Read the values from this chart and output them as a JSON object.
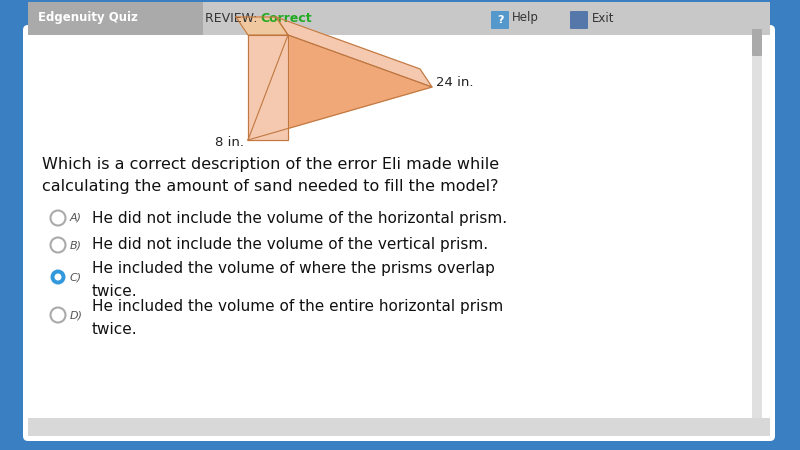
{
  "bg_outer": "#3a7fc1",
  "header_bg": "#c8c8c8",
  "header_text_quiz": "Edgenuity Quiz",
  "header_text_review": "REVIEW: ",
  "header_text_correct": "Correct",
  "header_correct_color": "#22aa22",
  "header_help": "Help",
  "header_exit": "Exit",
  "question_line1": "Which is a correct description of the error Eli made while",
  "question_line2": "calculating the amount of sand needed to fill the model?",
  "options": [
    {
      "label": "A)",
      "text1": "He did not include the volume of the horizontal prism.",
      "text2": null,
      "selected": false
    },
    {
      "label": "B)",
      "text1": "He did not include the volume of the vertical prism.",
      "text2": null,
      "selected": false
    },
    {
      "label": "C)",
      "text1": "He included the volume of where the prisms overlap",
      "text2": "twice.",
      "selected": true
    },
    {
      "label": "D)",
      "text1": "He included the volume of the entire horizontal prism",
      "text2": "twice.",
      "selected": false
    }
  ],
  "radio_unsel_edge": "#aaaaaa",
  "radio_sel_fill": "#3399dd",
  "dim_label_24": "24 in.",
  "dim_label_8": "8 in.",
  "prism_light": "#f5c8b0",
  "prism_mid": "#f0a878",
  "prism_dark": "#e09060",
  "prism_edge": "#c07840"
}
